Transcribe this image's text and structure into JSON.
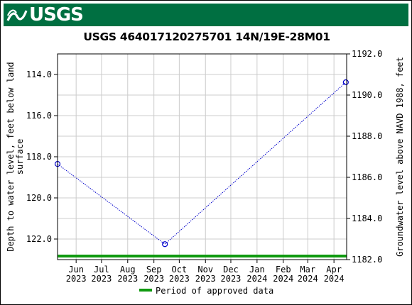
{
  "header": {
    "logo_text": "USGS",
    "logo_icon": "usgs-wave-icon",
    "background": "#006f41"
  },
  "chart_data": {
    "type": "line",
    "title": "USGS 464017120275701 14N/19E-28M01",
    "ylabel_left": "Depth to water level, feet below land surface",
    "ylabel_right": "Groundwater level above NAVD 1988, feet",
    "y_left_ticks": [
      "114.0",
      "116.0",
      "118.0",
      "120.0",
      "122.0"
    ],
    "y_left_range": [
      113.0,
      123.0
    ],
    "y_right_ticks": [
      "1182.0",
      "1184.0",
      "1186.0",
      "1188.0",
      "1190.0",
      "1192.0"
    ],
    "y_right_range": [
      1182.0,
      1192.0
    ],
    "x_ticks": [
      {
        "month": "Jun",
        "year": "2023",
        "date": "2023-06-01"
      },
      {
        "month": "Jul",
        "year": "2023",
        "date": "2023-07-01"
      },
      {
        "month": "Aug",
        "year": "2023",
        "date": "2023-08-01"
      },
      {
        "month": "Sep",
        "year": "2023",
        "date": "2023-09-01"
      },
      {
        "month": "Oct",
        "year": "2023",
        "date": "2023-10-01"
      },
      {
        "month": "Nov",
        "year": "2023",
        "date": "2023-11-01"
      },
      {
        "month": "Dec",
        "year": "2023",
        "date": "2023-12-01"
      },
      {
        "month": "Jan",
        "year": "2024",
        "date": "2024-01-01"
      },
      {
        "month": "Feb",
        "year": "2024",
        "date": "2024-02-01"
      },
      {
        "month": "Mar",
        "year": "2024",
        "date": "2024-03-01"
      },
      {
        "month": "Apr",
        "year": "2024",
        "date": "2024-04-01"
      }
    ],
    "x_range": [
      "2023-05-10",
      "2024-04-16"
    ],
    "series": [
      {
        "points": [
          {
            "date": "2023-05-10",
            "value": 118.35
          },
          {
            "date": "2023-09-14",
            "value": 122.25
          },
          {
            "date": "2024-04-15",
            "value": 114.38
          }
        ],
        "color": "#0000cc"
      }
    ],
    "approved_period": {
      "start": "2023-05-10",
      "end": "2024-04-16",
      "color": "#109a10"
    },
    "legend": {
      "label": "Period of approved data",
      "placement": "bottom-center"
    },
    "grid": true
  }
}
